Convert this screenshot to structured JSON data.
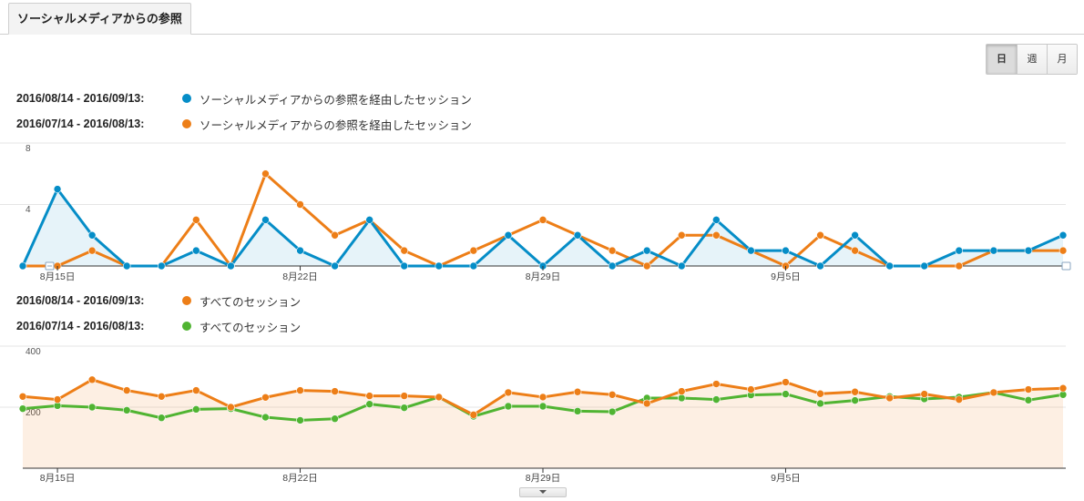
{
  "tab": {
    "label": "ソーシャルメディアからの参照"
  },
  "period_buttons": [
    {
      "label": "日",
      "active": true
    },
    {
      "label": "週",
      "active": false
    },
    {
      "label": "月",
      "active": false
    }
  ],
  "colors": {
    "blue": "#058dc7",
    "orange": "#ed7e17",
    "green": "#50b432"
  },
  "legend_top": [
    {
      "date": "2016/08/14 - 2016/09/13:",
      "label": "ソーシャルメディアからの参照を経由したセッション",
      "color": "#058dc7"
    },
    {
      "date": "2016/07/14 - 2016/08/13:",
      "label": "ソーシャルメディアからの参照を経由したセッション",
      "color": "#ed7e17"
    }
  ],
  "legend_bottom": [
    {
      "date": "2016/08/14 - 2016/09/13:",
      "label": "すべてのセッション",
      "color": "#ed7e17"
    },
    {
      "date": "2016/07/14 - 2016/08/13:",
      "label": "すべてのセッション",
      "color": "#50b432"
    }
  ],
  "chart_data": [
    {
      "type": "line",
      "x_tick_labels": [
        "8月15日",
        "8月22日",
        "8月29日",
        "9月5日"
      ],
      "y_tick_labels": [
        "8",
        "4"
      ],
      "ylim": [
        0,
        8
      ],
      "series": [
        {
          "name": "ソーシャルメディアからの参照を経由したセッション (2016/08/14 - 2016/09/13)",
          "color": "#058dc7",
          "fill": true,
          "values": [
            0,
            5,
            2,
            0,
            0,
            1,
            0,
            3,
            1,
            0,
            3,
            0,
            0,
            0,
            2,
            0,
            2,
            0,
            1,
            0,
            3,
            1,
            1,
            0,
            2,
            0,
            0,
            1,
            1,
            1,
            2
          ]
        },
        {
          "name": "ソーシャルメディアからの参照を経由したセッション (2016/07/14 - 2016/08/13)",
          "color": "#ed7e17",
          "fill": false,
          "values": [
            0,
            0,
            1,
            0,
            0,
            3,
            0,
            6,
            4,
            2,
            3,
            1,
            0,
            1,
            2,
            3,
            2,
            1,
            0,
            2,
            2,
            1,
            0,
            2,
            1,
            0,
            0,
            0,
            1,
            1,
            1
          ]
        }
      ]
    },
    {
      "type": "line",
      "x_tick_labels": [
        "8月15日",
        "8月22日",
        "8月29日",
        "9月5日"
      ],
      "y_tick_labels": [
        "400",
        "200"
      ],
      "ylim": [
        0,
        400
      ],
      "series": [
        {
          "name": "すべてのセッション (2016/08/14 - 2016/09/13)",
          "color": "#ed7e17",
          "fill": true,
          "values": [
            235,
            225,
            290,
            255,
            235,
            255,
            200,
            232,
            255,
            252,
            237,
            237,
            233,
            175,
            248,
            233,
            250,
            241,
            212,
            252,
            276,
            258,
            282,
            244,
            250,
            230,
            243,
            225,
            248,
            258,
            262
          ]
        },
        {
          "name": "すべてのセッション (2016/07/14 - 2016/08/13)",
          "color": "#50b432",
          "fill": false,
          "values": [
            195,
            205,
            200,
            190,
            165,
            193,
            195,
            167,
            157,
            162,
            210,
            198,
            233,
            170,
            203,
            203,
            187,
            185,
            230,
            230,
            225,
            240,
            243,
            212,
            222,
            235,
            227,
            233,
            248,
            223,
            241
          ]
        }
      ]
    }
  ]
}
